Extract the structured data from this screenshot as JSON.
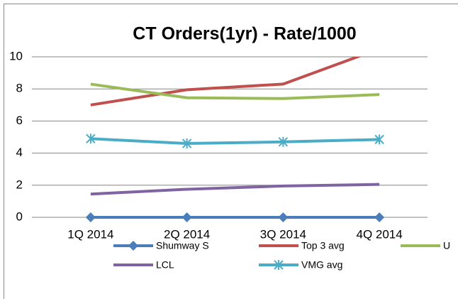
{
  "chart_data": {
    "type": "line",
    "title": "CT Orders(1yr) - Rate/1000",
    "categories": [
      "1Q 2014",
      "2Q 2014",
      "3Q 2014",
      "4Q 2014"
    ],
    "series": [
      {
        "name": "Shumway S",
        "color": "#4a7ebb",
        "marker": "diamond",
        "values": [
          0,
          0,
          0,
          0
        ]
      },
      {
        "name": "Top 3 avg",
        "color": "#c0504d",
        "marker": "none",
        "values": [
          7.0,
          7.95,
          8.3,
          10.5
        ]
      },
      {
        "name": "U",
        "color": "#9bbb59",
        "marker": "none",
        "values": [
          8.3,
          7.45,
          7.4,
          7.65
        ]
      },
      {
        "name": "LCL",
        "color": "#8064a2",
        "marker": "none",
        "values": [
          1.45,
          1.75,
          1.95,
          2.05
        ]
      },
      {
        "name": "VMG avg",
        "color": "#4bacc6",
        "marker": "asterisk",
        "values": [
          4.9,
          4.6,
          4.7,
          4.85
        ]
      }
    ],
    "ylim": [
      0,
      10
    ],
    "yticks": [
      0,
      2,
      4,
      6,
      8,
      10
    ],
    "grid": true
  }
}
